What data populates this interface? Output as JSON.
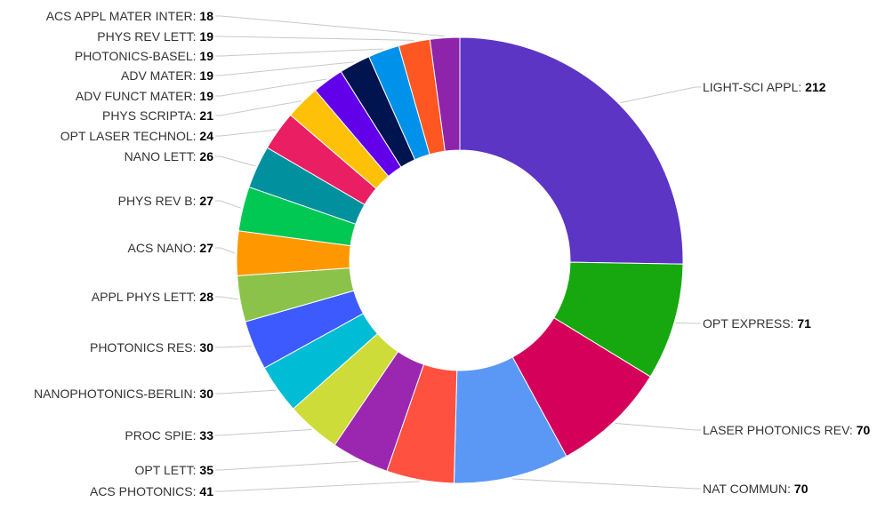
{
  "chart_data": {
    "type": "pie",
    "variant": "donut",
    "title": "",
    "legend": "none",
    "label_separator": ": ",
    "slices": [
      {
        "label": "LIGHT-SCI APPL",
        "value": 212,
        "color": "#5c35c5"
      },
      {
        "label": "OPT EXPRESS",
        "value": 71,
        "color": "#16a80e"
      },
      {
        "label": "LASER PHOTONICS REV",
        "value": 70,
        "color": "#d4005a"
      },
      {
        "label": "NAT COMMUN",
        "value": 70,
        "color": "#5b97f5"
      },
      {
        "label": "ACS PHOTONICS",
        "value": 41,
        "color": "#ff5040"
      },
      {
        "label": "OPT LETT",
        "value": 35,
        "color": "#9b27b0"
      },
      {
        "label": "PROC SPIE",
        "value": 33,
        "color": "#cddc39"
      },
      {
        "label": "NANOPHOTONICS-BERLIN",
        "value": 30,
        "color": "#00bcd4"
      },
      {
        "label": "PHOTONICS RES",
        "value": 30,
        "color": "#3d5afe"
      },
      {
        "label": "APPL PHYS LETT",
        "value": 28,
        "color": "#8bc34a"
      },
      {
        "label": "ACS NANO",
        "value": 27,
        "color": "#ff9800"
      },
      {
        "label": "PHYS REV B",
        "value": 27,
        "color": "#00c853"
      },
      {
        "label": "NANO LETT",
        "value": 26,
        "color": "#00909e"
      },
      {
        "label": "OPT LASER TECHNOL",
        "value": 24,
        "color": "#e91e63"
      },
      {
        "label": "PHYS SCRIPTA",
        "value": 21,
        "color": "#ffc107"
      },
      {
        "label": "ADV FUNCT MATER",
        "value": 19,
        "color": "#6200ea"
      },
      {
        "label": "ADV MATER",
        "value": 19,
        "color": "#001450"
      },
      {
        "label": "PHOTONICS-BASEL",
        "value": 19,
        "color": "#0091ea"
      },
      {
        "label": "PHYS REV LETT",
        "value": 19,
        "color": "#ff5722"
      },
      {
        "label": "ACS APPL MATER INTER",
        "value": 18,
        "color": "#8e24aa"
      }
    ]
  }
}
